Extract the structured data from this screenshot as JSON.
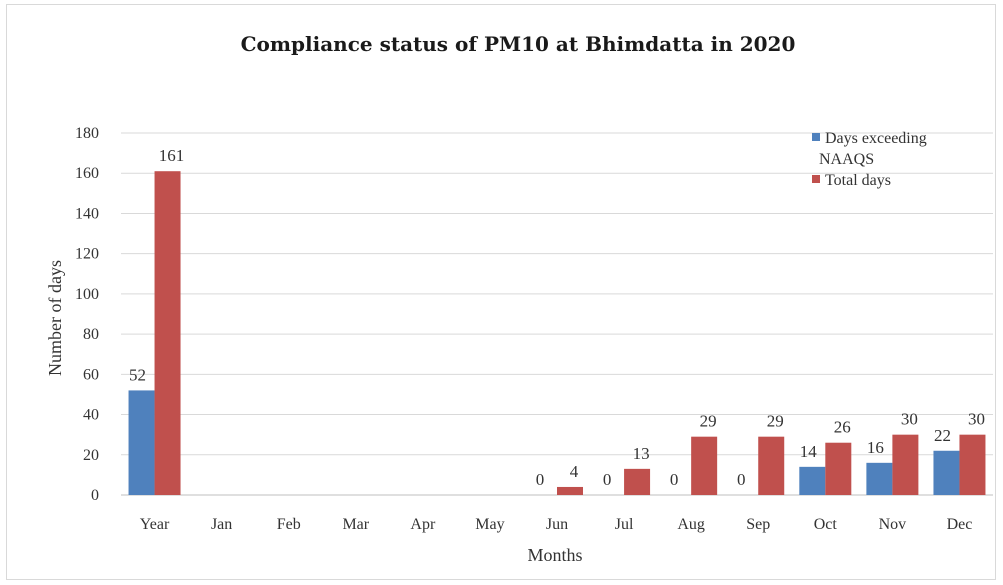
{
  "chart_data": {
    "type": "bar",
    "title": "Compliance status of PM10 at Bhimdatta in 2020",
    "xlabel": "Months",
    "ylabel": "Number of days",
    "categories": [
      "Year",
      "Jan",
      "Feb",
      "Mar",
      "Apr",
      "May",
      "Jun",
      "Jul",
      "Aug",
      "Sep",
      "Oct",
      "Nov",
      "Dec"
    ],
    "series": [
      {
        "name": "Days exceeding NAAQS",
        "legend_lines": [
          "Days exceeding",
          "NAAQS"
        ],
        "color": "#4f81bd",
        "values": [
          52,
          null,
          null,
          null,
          null,
          null,
          0,
          0,
          0,
          0,
          14,
          16,
          22
        ],
        "labels": [
          "52",
          "",
          "",
          "",
          "",
          "",
          "0",
          "0",
          "0",
          "0",
          "14",
          "16",
          "22"
        ]
      },
      {
        "name": "Total days",
        "legend_lines": [
          "Total days"
        ],
        "color": "#c0504d",
        "values": [
          161,
          null,
          null,
          null,
          null,
          null,
          4,
          13,
          29,
          29,
          26,
          30,
          30
        ],
        "labels": [
          "161",
          "",
          "",
          "",
          "",
          "",
          "4",
          "13",
          "29",
          "29",
          "26",
          "30",
          "30"
        ]
      }
    ],
    "ylim": [
      0,
      180
    ],
    "yticks": [
      0,
      20,
      40,
      60,
      80,
      100,
      120,
      140,
      160,
      180
    ],
    "grid": true,
    "legend_position": "top-right"
  }
}
